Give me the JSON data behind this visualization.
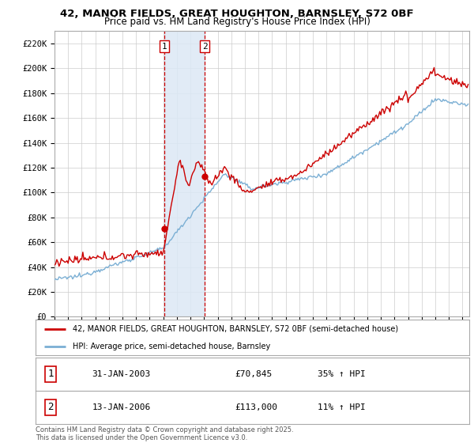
{
  "title_line1": "42, MANOR FIELDS, GREAT HOUGHTON, BARNSLEY, S72 0BF",
  "title_line2": "Price paid vs. HM Land Registry's House Price Index (HPI)",
  "ylabel_ticks": [
    "£0",
    "£20K",
    "£40K",
    "£60K",
    "£80K",
    "£100K",
    "£120K",
    "£140K",
    "£160K",
    "£180K",
    "£200K",
    "£220K"
  ],
  "ytick_values": [
    0,
    20000,
    40000,
    60000,
    80000,
    100000,
    120000,
    140000,
    160000,
    180000,
    200000,
    220000
  ],
  "ylim": [
    0,
    230000
  ],
  "xlim_start": 1995.0,
  "xlim_end": 2025.5,
  "sale1_date": 2003.08,
  "sale1_price": 70845,
  "sale1_label": "1",
  "sale2_date": 2006.04,
  "sale2_price": 113000,
  "sale2_label": "2",
  "hpi_color": "#7bafd4",
  "price_color": "#cc0000",
  "vline_color": "#cc0000",
  "shade_color": "#dce8f5",
  "legend_label_price": "42, MANOR FIELDS, GREAT HOUGHTON, BARNSLEY, S72 0BF (semi-detached house)",
  "legend_label_hpi": "HPI: Average price, semi-detached house, Barnsley",
  "footnote": "Contains HM Land Registry data © Crown copyright and database right 2025.\nThis data is licensed under the Open Government Licence v3.0.",
  "background_color": "#ffffff",
  "grid_color": "#cccccc"
}
